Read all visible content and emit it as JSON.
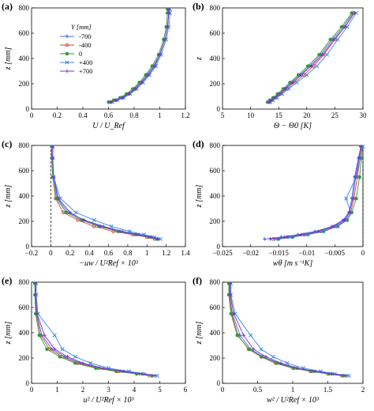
{
  "colors": {
    "-700": "#4a6fe0",
    "-400": "#d24a3a",
    "0": "#2f9a3a",
    "+400": "#3a86e8",
    "+700": "#7a2fd0"
  },
  "legend": {
    "title": "Y [mm]",
    "entries": [
      "-700",
      "-400",
      "0",
      "+400",
      "+700"
    ]
  },
  "chart_data": [
    {
      "panel": "(a)",
      "type": "line",
      "xlabel": "U / U_Ref",
      "ylabel": "z [mm]",
      "xlim": [
        0,
        1.2
      ],
      "ylim": [
        0,
        800
      ],
      "xticks": [
        "0",
        "0.2",
        "0.4",
        "0.6",
        "0.8",
        "1",
        "1.2"
      ],
      "yticks": [
        "0",
        "200",
        "400",
        "600",
        "800"
      ],
      "legend": "upper-left",
      "series": [
        {
          "name": "-700",
          "x": [
            0.61,
            0.65,
            0.7,
            0.75,
            0.8,
            0.85,
            0.9,
            0.95,
            1.0,
            1.04,
            1.06,
            1.07,
            1.07
          ],
          "y": [
            55,
            70,
            90,
            120,
            160,
            210,
            270,
            340,
            430,
            550,
            650,
            760,
            790
          ]
        },
        {
          "name": "-400",
          "x": [
            0.62,
            0.66,
            0.71,
            0.76,
            0.81,
            0.86,
            0.91,
            0.96,
            1.0,
            1.04,
            1.06,
            1.07,
            1.07
          ],
          "y": [
            55,
            70,
            90,
            120,
            160,
            210,
            270,
            340,
            430,
            550,
            650,
            760,
            790
          ]
        },
        {
          "name": "0",
          "x": [
            0.6,
            0.64,
            0.69,
            0.74,
            0.79,
            0.84,
            0.89,
            0.94,
            0.99,
            1.03,
            1.05,
            1.06,
            1.06
          ],
          "y": [
            55,
            70,
            90,
            120,
            160,
            210,
            270,
            340,
            430,
            550,
            650,
            760,
            790
          ]
        },
        {
          "name": "+400",
          "x": [
            0.63,
            0.67,
            0.72,
            0.77,
            0.82,
            0.87,
            0.92,
            0.97,
            1.01,
            1.05,
            1.07,
            1.08,
            1.08
          ],
          "y": [
            55,
            70,
            90,
            120,
            160,
            210,
            270,
            340,
            430,
            550,
            650,
            760,
            790
          ]
        },
        {
          "name": "+700",
          "x": [
            0.62,
            0.66,
            0.71,
            0.76,
            0.81,
            0.86,
            0.91,
            0.96,
            1.0,
            1.04,
            1.06,
            1.07,
            1.07
          ],
          "y": [
            55,
            70,
            90,
            120,
            160,
            210,
            270,
            340,
            430,
            550,
            650,
            760,
            790
          ]
        }
      ]
    },
    {
      "panel": "(b)",
      "type": "line",
      "xlabel": "Θ − Θ0 [K]",
      "ylabel": "z",
      "xlim": [
        5,
        30
      ],
      "ylim": [
        0,
        800
      ],
      "xticks": [
        "5",
        "10",
        "15",
        "20",
        "25",
        "30"
      ],
      "yticks": [
        "0",
        "200",
        "400",
        "600",
        "800"
      ],
      "series": [
        {
          "name": "-700",
          "x": [
            13.2,
            13.6,
            14.2,
            15.0,
            16.0,
            17.2,
            18.8,
            20.5,
            22.5,
            24.5,
            26.5,
            28.2
          ],
          "y": [
            55,
            70,
            90,
            120,
            160,
            210,
            270,
            340,
            430,
            550,
            650,
            760
          ]
        },
        {
          "name": "-400",
          "x": [
            13.4,
            13.8,
            14.5,
            15.4,
            16.5,
            17.8,
            19.5,
            21.2,
            23.0,
            25.0,
            26.8,
            28.4
          ],
          "y": [
            55,
            70,
            90,
            120,
            160,
            210,
            270,
            340,
            430,
            550,
            650,
            760
          ]
        },
        {
          "name": "0",
          "x": [
            13.0,
            13.4,
            14.0,
            14.8,
            15.8,
            17.0,
            18.5,
            20.2,
            22.2,
            24.2,
            26.2,
            28.0
          ],
          "y": [
            55,
            70,
            90,
            120,
            160,
            210,
            270,
            340,
            430,
            550,
            650,
            760
          ]
        },
        {
          "name": "+400",
          "x": [
            13.5,
            14.0,
            14.7,
            15.6,
            16.8,
            18.2,
            20.0,
            21.8,
            23.6,
            25.5,
            27.2,
            28.8
          ],
          "y": [
            55,
            70,
            90,
            120,
            160,
            210,
            270,
            340,
            430,
            550,
            650,
            760
          ]
        },
        {
          "name": "+700",
          "x": [
            13.3,
            13.7,
            14.3,
            15.2,
            16.2,
            17.5,
            19.0,
            20.8,
            22.8,
            24.8,
            26.8,
            28.5
          ],
          "y": [
            55,
            70,
            90,
            120,
            160,
            210,
            270,
            340,
            430,
            550,
            650,
            760
          ]
        }
      ]
    },
    {
      "panel": "(c)",
      "type": "line",
      "xlabel": "−uw / U²Ref × 10³",
      "ylabel": "z [mm]",
      "xlim": [
        -0.2,
        1.4
      ],
      "ylim": [
        0,
        800
      ],
      "xticks": [
        "−0.2",
        "0",
        "0.2",
        "0.4",
        "0.6",
        "0.8",
        "1",
        "1.2",
        "1.4"
      ],
      "yticks": [
        "0",
        "200",
        "400",
        "600",
        "800"
      ],
      "zero_line": 0,
      "series": [
        {
          "name": "-700",
          "x": [
            1.12,
            1.05,
            0.92,
            0.75,
            0.55,
            0.35,
            0.18,
            0.07,
            0.03,
            0.02,
            0.02
          ],
          "y": [
            60,
            75,
            95,
            120,
            160,
            210,
            270,
            380,
            550,
            700,
            790
          ]
        },
        {
          "name": "-400",
          "x": [
            1.08,
            1.0,
            0.85,
            0.65,
            0.45,
            0.28,
            0.13,
            0.05,
            0.02,
            0.01,
            0.01
          ],
          "y": [
            60,
            75,
            95,
            120,
            160,
            210,
            270,
            380,
            550,
            700,
            790
          ]
        },
        {
          "name": "0",
          "x": [
            1.1,
            1.02,
            0.88,
            0.7,
            0.5,
            0.32,
            0.16,
            0.06,
            0.02,
            0.01,
            0.01
          ],
          "y": [
            60,
            75,
            95,
            120,
            160,
            210,
            270,
            380,
            550,
            700,
            790
          ]
        },
        {
          "name": "+400",
          "x": [
            1.14,
            1.08,
            0.97,
            0.82,
            0.63,
            0.45,
            0.26,
            0.1,
            0.03,
            0.02,
            0.02
          ],
          "y": [
            60,
            75,
            95,
            120,
            160,
            210,
            270,
            380,
            550,
            700,
            790
          ]
        },
        {
          "name": "+700",
          "x": [
            1.11,
            1.04,
            0.9,
            0.72,
            0.52,
            0.34,
            0.2,
            0.08,
            0.03,
            0.02,
            0.02
          ],
          "y": [
            60,
            75,
            95,
            120,
            160,
            210,
            270,
            380,
            550,
            700,
            790
          ]
        }
      ]
    },
    {
      "panel": "(d)",
      "type": "line",
      "xlabel": "wθ [m s⁻¹K]",
      "ylabel": "z [mm]",
      "xlim": [
        -0.025,
        0
      ],
      "ylim": [
        0,
        800
      ],
      "xticks": [
        "−0.025",
        "−0.02",
        "−0.015",
        "−0.01",
        "−0.005",
        "0"
      ],
      "yticks": [
        "0",
        "200",
        "400",
        "600",
        "800"
      ],
      "zero_line": 0,
      "series": [
        {
          "name": "-700",
          "x": [
            -0.0175,
            -0.0145,
            -0.0115,
            -0.0085,
            -0.0055,
            -0.0035,
            -0.0025,
            -0.002,
            -0.0015,
            -0.0008,
            -0.0004
          ],
          "y": [
            60,
            75,
            95,
            120,
            160,
            210,
            270,
            380,
            550,
            700,
            790
          ]
        },
        {
          "name": "-400",
          "x": [
            -0.016,
            -0.0135,
            -0.0105,
            -0.0075,
            -0.0048,
            -0.003,
            -0.0022,
            -0.0016,
            -0.001,
            -0.0005,
            -0.0003
          ],
          "y": [
            60,
            75,
            95,
            120,
            160,
            210,
            270,
            380,
            550,
            700,
            790
          ]
        },
        {
          "name": "0",
          "x": [
            -0.015,
            -0.0125,
            -0.0098,
            -0.007,
            -0.0045,
            -0.0028,
            -0.002,
            -0.0012,
            -0.0006,
            -0.0003,
            -0.0002
          ],
          "y": [
            60,
            75,
            95,
            120,
            160,
            210,
            270,
            380,
            550,
            700,
            790
          ]
        },
        {
          "name": "+400",
          "x": [
            -0.0155,
            -0.013,
            -0.01,
            -0.0072,
            -0.0045,
            -0.003,
            -0.0022,
            -0.003,
            -0.0012,
            -0.0005,
            0.0
          ],
          "y": [
            60,
            75,
            95,
            120,
            160,
            210,
            270,
            380,
            550,
            700,
            790
          ]
        },
        {
          "name": "+700",
          "x": [
            -0.0165,
            -0.014,
            -0.011,
            -0.008,
            -0.0052,
            -0.0033,
            -0.0024,
            -0.0018,
            -0.0013,
            -0.0007,
            -0.0004
          ],
          "y": [
            60,
            75,
            95,
            120,
            160,
            210,
            270,
            380,
            550,
            700,
            790
          ]
        }
      ]
    },
    {
      "panel": "(e)",
      "type": "line",
      "xlabel": "u² / U²Ref × 10³",
      "ylabel": "z [mm]",
      "xlim": [
        0,
        6
      ],
      "ylim": [
        0,
        800
      ],
      "xticks": [
        "0",
        "1",
        "2",
        "3",
        "4",
        "5",
        "6"
      ],
      "yticks": [
        "0",
        "200",
        "400",
        "600",
        "800"
      ],
      "series": [
        {
          "name": "-700",
          "x": [
            4.7,
            4.2,
            3.5,
            2.7,
            1.9,
            1.3,
            0.8,
            0.4,
            0.2,
            0.15,
            0.15
          ],
          "y": [
            60,
            75,
            95,
            120,
            160,
            210,
            270,
            380,
            550,
            700,
            790
          ]
        },
        {
          "name": "-400",
          "x": [
            4.6,
            4.1,
            3.4,
            2.6,
            1.8,
            1.2,
            0.7,
            0.35,
            0.18,
            0.14,
            0.14
          ],
          "y": [
            60,
            75,
            95,
            120,
            160,
            210,
            270,
            380,
            550,
            700,
            790
          ]
        },
        {
          "name": "0",
          "x": [
            4.7,
            4.1,
            3.3,
            2.5,
            1.7,
            1.1,
            0.6,
            0.3,
            0.16,
            0.13,
            0.13
          ],
          "y": [
            60,
            75,
            95,
            120,
            160,
            210,
            270,
            380,
            550,
            700,
            790
          ]
        },
        {
          "name": "+400",
          "x": [
            4.9,
            4.4,
            3.8,
            3.0,
            2.3,
            1.7,
            1.2,
            0.9,
            0.25,
            0.18,
            0.18
          ],
          "y": [
            60,
            75,
            95,
            120,
            160,
            210,
            270,
            380,
            550,
            700,
            790
          ]
        },
        {
          "name": "+700",
          "x": [
            4.8,
            4.3,
            3.6,
            2.8,
            2.0,
            1.4,
            0.9,
            0.5,
            0.22,
            0.16,
            0.16
          ],
          "y": [
            60,
            75,
            95,
            120,
            160,
            210,
            270,
            380,
            550,
            700,
            790
          ]
        }
      ]
    },
    {
      "panel": "(f)",
      "type": "line",
      "xlabel": "w² / U²Ref × 10³",
      "ylabel": "z [mm]",
      "xlim": [
        0,
        2
      ],
      "ylim": [
        0,
        800
      ],
      "xticks": [
        "0",
        "0.5",
        "1",
        "1.5",
        "2"
      ],
      "yticks": [
        "0",
        "200",
        "400",
        "600",
        "800"
      ],
      "series": [
        {
          "name": "-700",
          "x": [
            1.75,
            1.55,
            1.3,
            1.05,
            0.8,
            0.58,
            0.4,
            0.25,
            0.14,
            0.1,
            0.1
          ],
          "y": [
            60,
            75,
            95,
            120,
            160,
            210,
            270,
            380,
            550,
            700,
            790
          ]
        },
        {
          "name": "-400",
          "x": [
            1.7,
            1.5,
            1.25,
            1.0,
            0.75,
            0.55,
            0.37,
            0.22,
            0.13,
            0.1,
            0.1
          ],
          "y": [
            60,
            75,
            95,
            120,
            160,
            210,
            270,
            380,
            550,
            700,
            790
          ]
        },
        {
          "name": "0",
          "x": [
            1.72,
            1.52,
            1.27,
            1.02,
            0.77,
            0.56,
            0.38,
            0.21,
            0.12,
            0.09,
            0.09
          ],
          "y": [
            60,
            75,
            95,
            120,
            160,
            210,
            270,
            380,
            550,
            700,
            790
          ]
        },
        {
          "name": "+400",
          "x": [
            1.8,
            1.6,
            1.4,
            1.15,
            0.92,
            0.72,
            0.55,
            0.4,
            0.18,
            0.12,
            0.12
          ],
          "y": [
            60,
            75,
            95,
            120,
            160,
            210,
            270,
            380,
            550,
            700,
            790
          ]
        },
        {
          "name": "+700",
          "x": [
            1.76,
            1.56,
            1.32,
            1.07,
            0.83,
            0.62,
            0.44,
            0.3,
            0.16,
            0.11,
            0.11
          ],
          "y": [
            60,
            75,
            95,
            120,
            160,
            210,
            270,
            380,
            550,
            700,
            790
          ]
        }
      ]
    }
  ]
}
